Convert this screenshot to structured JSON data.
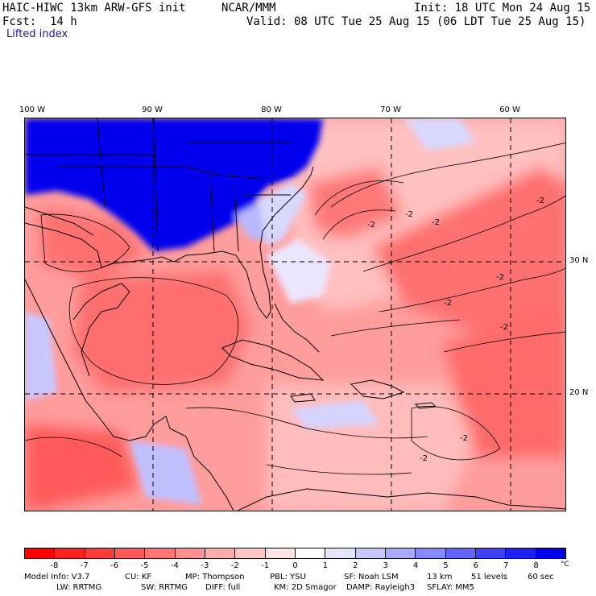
{
  "header": {
    "model_title": "HAIC-HIWC 13km ARW-GFS init",
    "org": "NCAR/MMM",
    "init": "Init: 18 UTC Mon 24 Aug 15",
    "fcst_label": "Fcst:",
    "fcst_value": "14 h",
    "valid": "Valid: 08 UTC Tue 25 Aug 15 (06 LDT Tue 25 Aug 15)",
    "field": "Lifted index"
  },
  "map": {
    "lon_labels": [
      "100 W",
      "90 W",
      "80 W",
      "70 W",
      "60 W"
    ],
    "lat_labels": [
      "30 N",
      "20 N"
    ],
    "contour_labels": [
      "-2",
      "-2",
      "-2",
      "-2",
      "-2",
      "-2",
      "-2",
      "-2",
      "-2"
    ]
  },
  "colorbar": {
    "unit": "°C",
    "ticks": [
      "-8",
      "-7",
      "-6",
      "-5",
      "-4",
      "-3",
      "-2",
      "-1",
      "0",
      "1",
      "2",
      "3",
      "4",
      "5",
      "6",
      "7",
      "8"
    ],
    "colors": [
      "#ff0000",
      "#ff2020",
      "#ff3c3c",
      "#ff5858",
      "#ff7474",
      "#ff9090",
      "#ffacac",
      "#ffc8c8",
      "#ffe4e4",
      "#ffffff",
      "#e4e4ff",
      "#c8c8ff",
      "#a8a8ff",
      "#8888ff",
      "#6464ff",
      "#4040ff",
      "#2020ff",
      "#0000f0"
    ]
  },
  "model_info": {
    "line1": [
      "Model Info: V3.7",
      "CU: KF",
      "MP: Thompson",
      "PBL: YSU",
      "SF: Noah LSM",
      "13 km",
      "51 levels",
      "60 sec"
    ],
    "line2": [
      "LW: RRTMG",
      "SW: RRTMG",
      "DIFF: full",
      "KM: 2D Smagor",
      "DAMP: Rayleigh3",
      "SFLAY: MM5"
    ]
  }
}
